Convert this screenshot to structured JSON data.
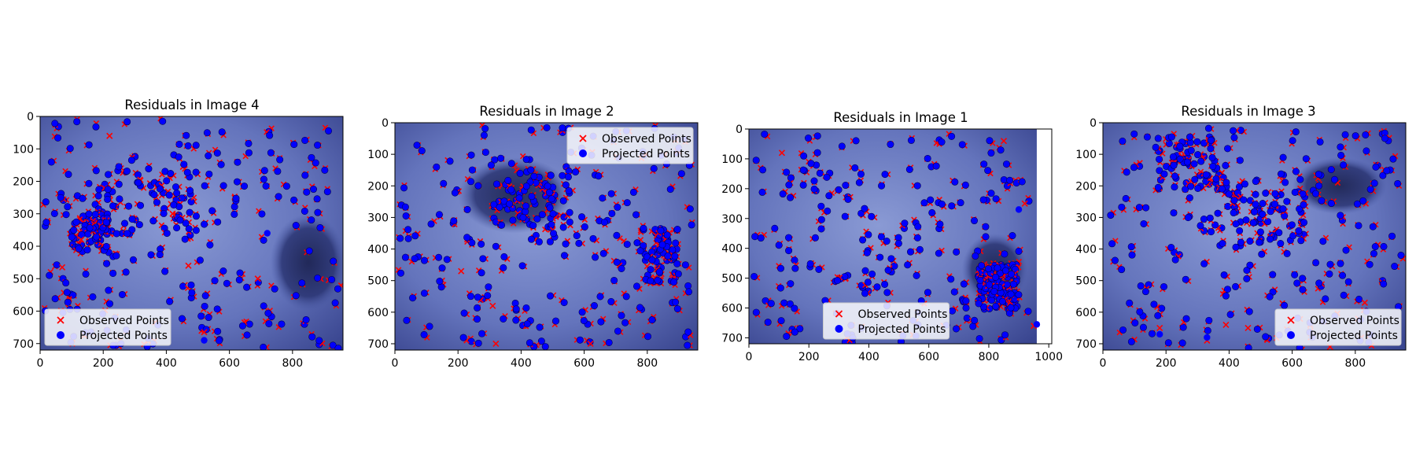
{
  "colors": {
    "observed": "#ff0000",
    "projected": "#0000ff",
    "residual": "#00a000",
    "tissue_light": "#7c8ccc",
    "tissue_dark": "#1c245c"
  },
  "legend": {
    "observed": "Observed Points",
    "projected": "Projected Points"
  },
  "chart_data": [
    {
      "type": "scatter",
      "title": "Residuals in Image 4",
      "xlim": [
        0,
        960
      ],
      "ylim": [
        720,
        0
      ],
      "xticks": [
        0,
        200,
        400,
        600,
        800
      ],
      "yticks": [
        0,
        100,
        200,
        300,
        400,
        500,
        600,
        700
      ],
      "image_extent": {
        "x": [
          0,
          960
        ],
        "y": [
          -40,
          720
        ]
      },
      "background": "image",
      "grid": false,
      "legend_position": "lower-left",
      "series": [
        {
          "name": "Observed Points",
          "marker": "x"
        },
        {
          "name": "Projected Points",
          "marker": "o"
        }
      ],
      "cluster_regions": [
        [
          330,
          260,
          330,
          210
        ],
        [
          160,
          360,
          120,
          120
        ]
      ],
      "outliers_observed": [
        [
          70,
          465
        ],
        [
          220,
          60
        ],
        [
          420,
          300
        ],
        [
          470,
          460
        ],
        [
          520,
          665
        ],
        [
          690,
          500
        ],
        [
          130,
          380
        ]
      ],
      "outliers_projected": [
        [
          520,
          690
        ],
        [
          720,
          360
        ]
      ]
    },
    {
      "type": "scatter",
      "title": "Residuals in Image 2",
      "xlim": [
        0,
        960
      ],
      "ylim": [
        720,
        0
      ],
      "xticks": [
        0,
        200,
        400,
        600,
        800
      ],
      "yticks": [
        0,
        100,
        200,
        300,
        400,
        500,
        600,
        700
      ],
      "image_extent": {
        "x": [
          0,
          960
        ],
        "y": [
          0,
          720
        ]
      },
      "background": "image",
      "grid": false,
      "legend_position": "top-right",
      "series": [
        {
          "name": "Observed Points",
          "marker": "x"
        },
        {
          "name": "Projected Points",
          "marker": "o"
        }
      ],
      "cluster_regions": [
        [
          430,
          250,
          250,
          170
        ],
        [
          840,
          420,
          120,
          180
        ]
      ],
      "outliers_observed": [
        [
          310,
          580
        ],
        [
          320,
          700
        ],
        [
          620,
          700
        ],
        [
          210,
          470
        ]
      ],
      "outliers_projected": []
    },
    {
      "type": "scatter",
      "title": "Residuals in Image 1",
      "xlim": [
        0,
        1010
      ],
      "ylim": [
        720,
        0
      ],
      "xticks": [
        0,
        200,
        400,
        600,
        800,
        1000
      ],
      "yticks": [
        0,
        100,
        200,
        300,
        400,
        500,
        600,
        700
      ],
      "image_extent": {
        "x": [
          0,
          960
        ],
        "y": [
          0,
          720
        ]
      },
      "background": "image",
      "grid": false,
      "legend_position": "lower-center",
      "series": [
        {
          "name": "Observed Points",
          "marker": "x"
        },
        {
          "name": "Projected Points",
          "marker": "o"
        }
      ],
      "cluster_regions": [
        [
          830,
          530,
          130,
          150
        ]
      ],
      "outliers_observed": [
        [
          920,
          250
        ],
        [
          950,
          660
        ],
        [
          110,
          80
        ],
        [
          850,
          40
        ]
      ],
      "outliers_projected": [
        [
          960,
          655
        ],
        [
          900,
          270
        ]
      ]
    },
    {
      "type": "scatter",
      "title": "Residuals in Image 3",
      "xlim": [
        0,
        960
      ],
      "ylim": [
        720,
        0
      ],
      "xticks": [
        0,
        200,
        400,
        600,
        800
      ],
      "yticks": [
        0,
        100,
        200,
        300,
        400,
        500,
        600,
        700
      ],
      "image_extent": {
        "x": [
          0,
          960
        ],
        "y": [
          0,
          720
        ]
      },
      "background": "image",
      "grid": false,
      "legend_position": "lower-right",
      "series": [
        {
          "name": "Observed Points",
          "marker": "x"
        },
        {
          "name": "Projected Points",
          "marker": "o"
        }
      ],
      "cluster_regions": [
        [
          280,
          130,
          230,
          170
        ],
        [
          500,
          300,
          280,
          170
        ]
      ],
      "outliers_observed": [
        [
          180,
          650
        ],
        [
          330,
          690
        ],
        [
          390,
          640
        ],
        [
          460,
          650
        ],
        [
          830,
          570
        ],
        [
          720,
          710
        ]
      ],
      "outliers_projected": [
        [
          180,
          670
        ],
        [
          330,
          680
        ]
      ]
    }
  ]
}
